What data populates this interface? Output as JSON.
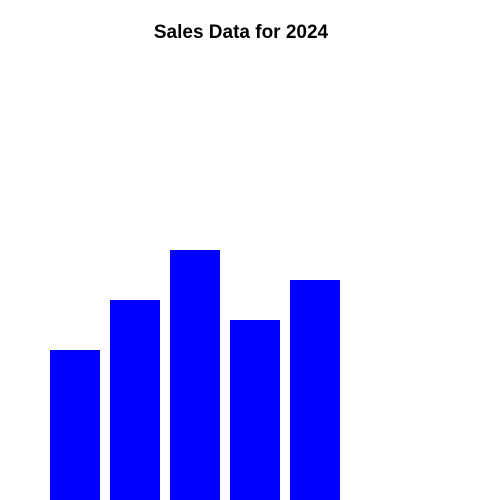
{
  "chart_data": {
    "type": "bar",
    "title": "Sales Data for 2024",
    "categories": [
      null,
      null,
      null,
      null,
      null
    ],
    "values": [
      150,
      200,
      250,
      180,
      220
    ],
    "color": "#0000ff"
  }
}
